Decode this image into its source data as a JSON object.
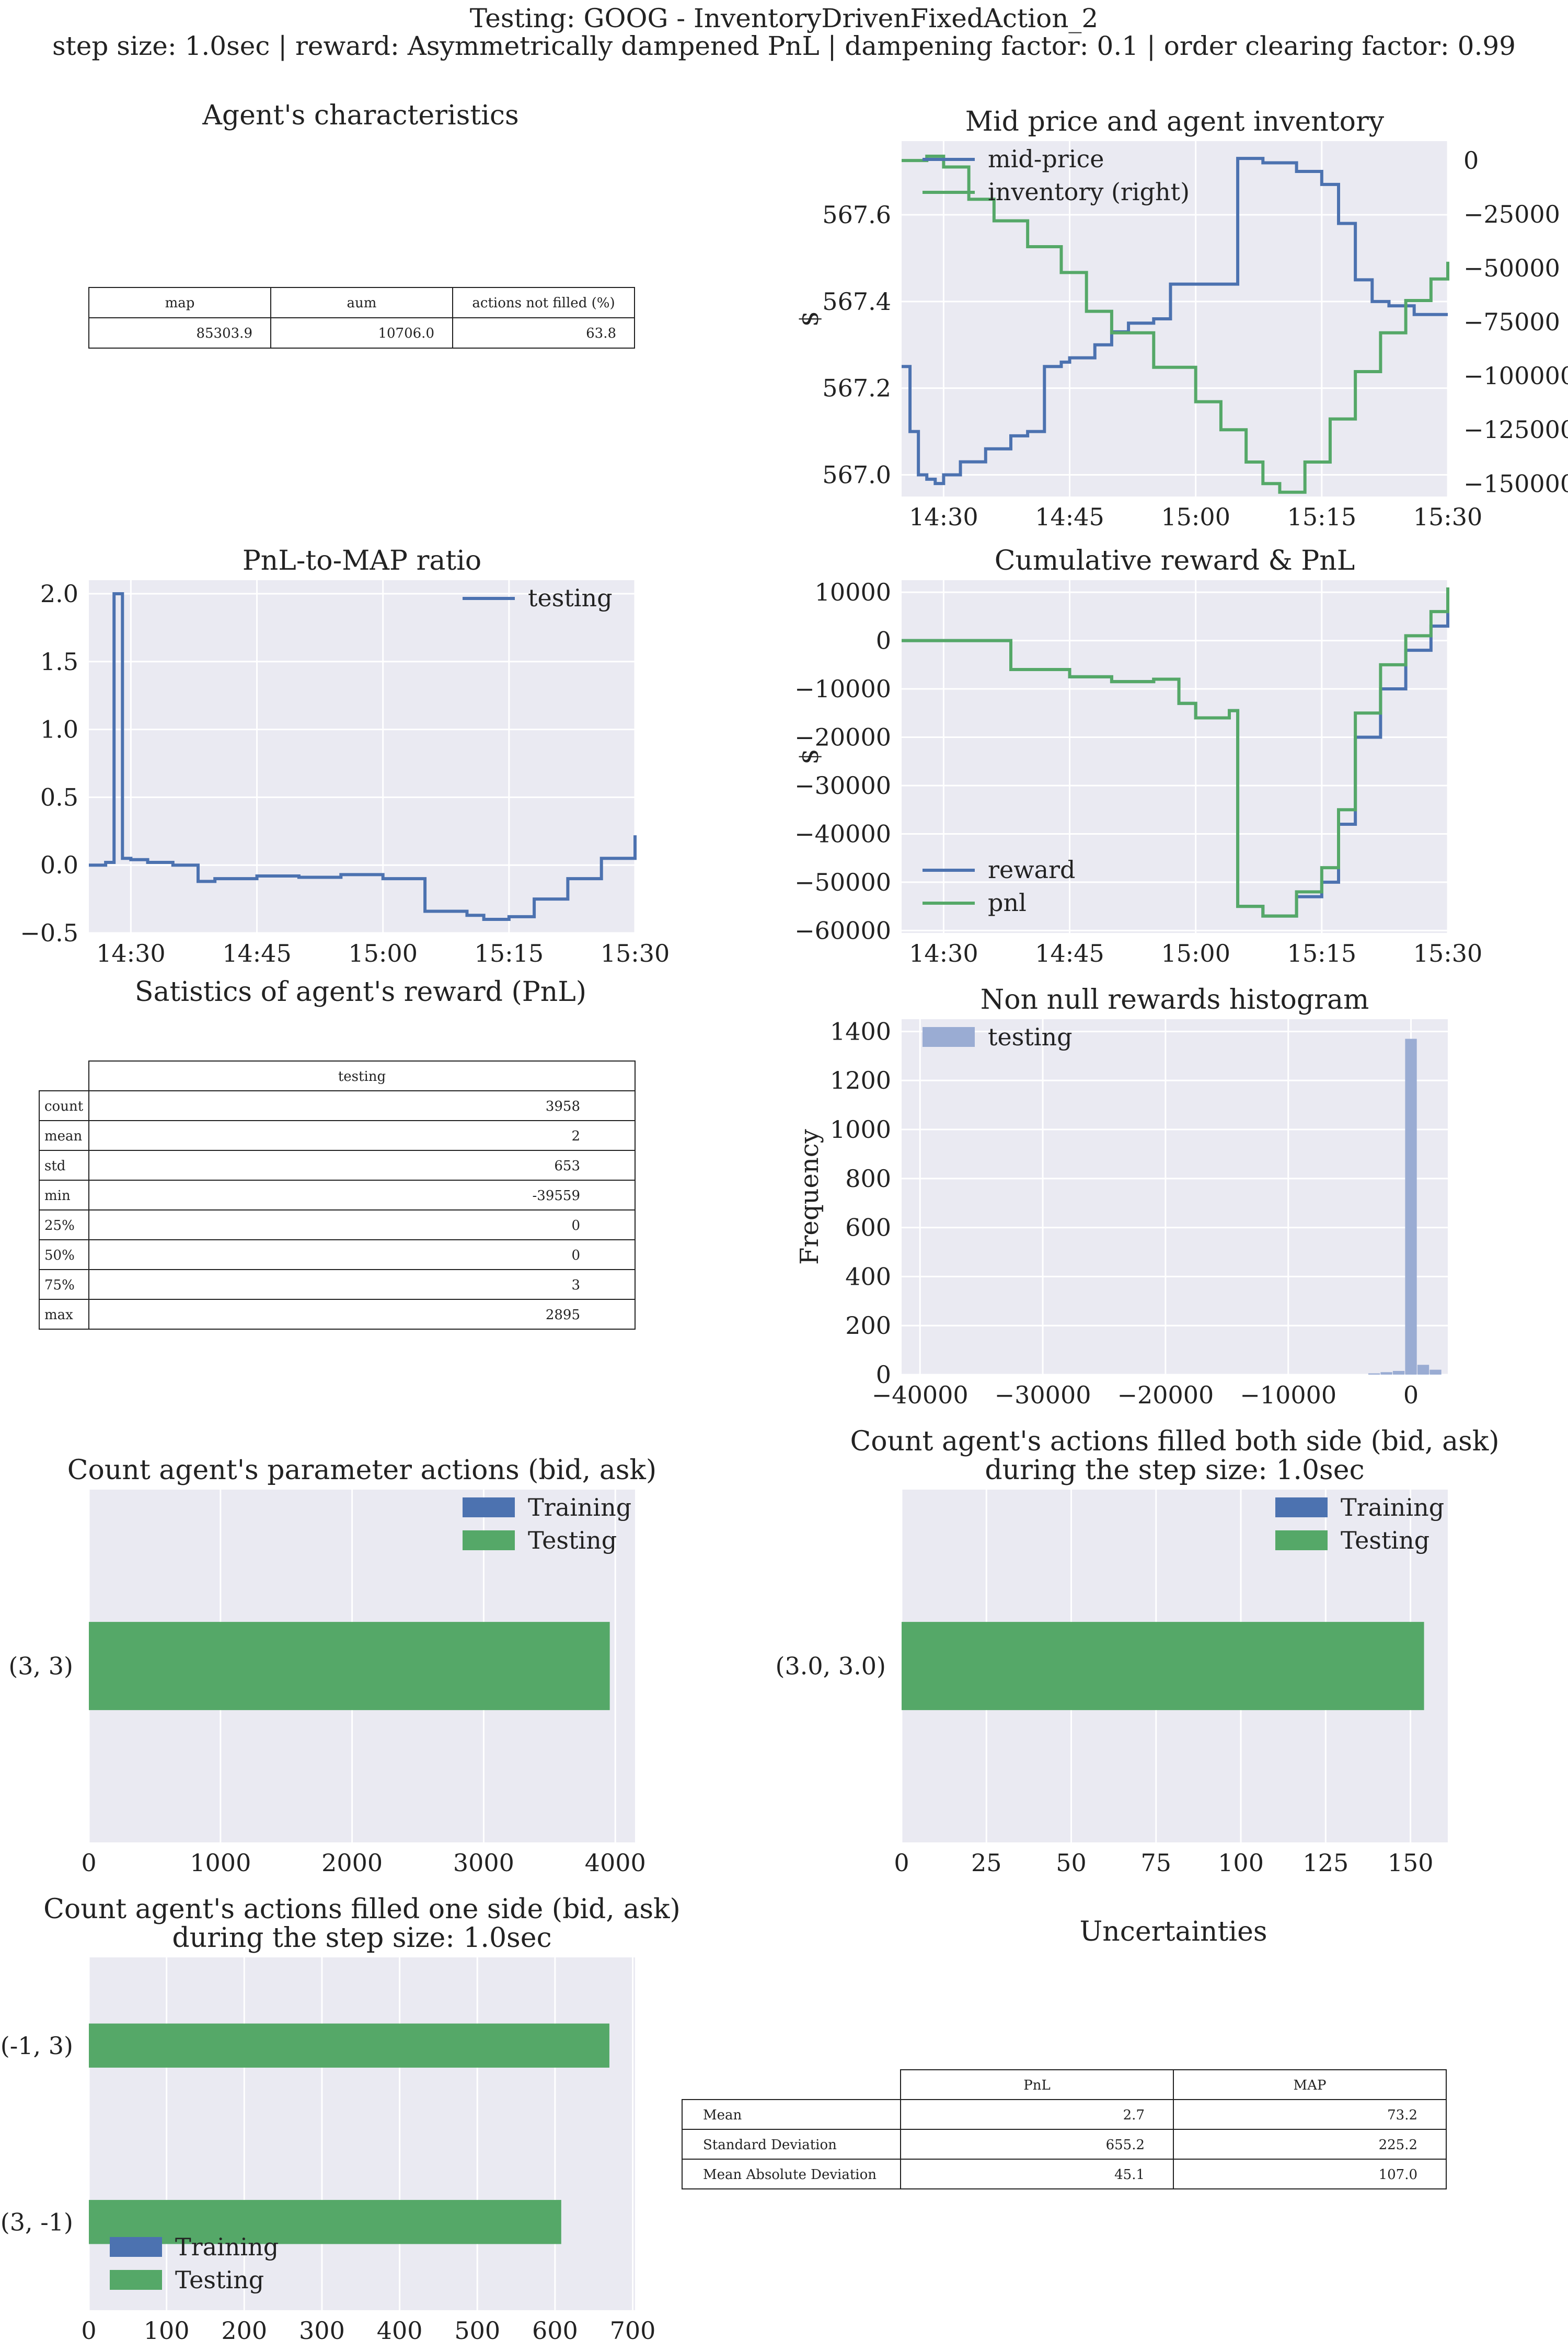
{
  "header": {
    "title": "Testing: GOOG - InventoryDrivenFixedAction_2",
    "subtitle": "step size: 1.0sec | reward: Asymmetrically dampened PnL | dampening factor: 0.1  | order clearing factor: 0.99"
  },
  "colors": {
    "blue": "#4c72b0",
    "green": "#55a868",
    "panel_bg": "#eaeaf2",
    "grid": "#ffffff",
    "hist": "#9aacd3"
  },
  "agent_table": {
    "title": "Agent's characteristics",
    "columns": [
      "map",
      "aum",
      "actions not filled (%)"
    ],
    "values": [
      "85303.9",
      "10706.0",
      "63.8"
    ]
  },
  "stats_table": {
    "title": "Satistics of agent's reward (PnL)",
    "column": "testing",
    "rows": [
      {
        "label": "count",
        "value": "3958"
      },
      {
        "label": "mean",
        "value": "2"
      },
      {
        "label": "std",
        "value": "653"
      },
      {
        "label": "min",
        "value": "-39559"
      },
      {
        "label": "25%",
        "value": "0"
      },
      {
        "label": "50%",
        "value": "0"
      },
      {
        "label": "75%",
        "value": "3"
      },
      {
        "label": "max",
        "value": "2895"
      }
    ]
  },
  "uncertainty_table": {
    "title": "Uncertainties",
    "columns": [
      "PnL",
      "MAP"
    ],
    "rows": [
      {
        "label": "Mean",
        "values": [
          "2.7",
          "73.2"
        ]
      },
      {
        "label": "Standard Deviation",
        "values": [
          "655.2",
          "225.2"
        ]
      },
      {
        "label": "Mean Absolute Deviation",
        "values": [
          "45.1",
          "107.0"
        ]
      }
    ]
  },
  "chart_data": [
    {
      "id": "mid_price",
      "type": "line",
      "title": "Mid price and agent inventory",
      "ylabel": "$",
      "xlim": [
        "14:25",
        "15:30"
      ],
      "x_ticks": [
        "14:30",
        "14:45",
        "15:00",
        "15:15",
        "15:30"
      ],
      "ylim": [
        566.95,
        567.77
      ],
      "y_ticks": [
        "567.0",
        "567.2",
        "567.4",
        "567.6"
      ],
      "y2lim": [
        -156000,
        9000
      ],
      "y2_ticks": [
        "0",
        "−25000",
        "−50000",
        "−75000",
        "−100000",
        "−125000",
        "−150000"
      ],
      "legend": "top-left",
      "series": [
        {
          "name": "mid-price",
          "axis": "left",
          "x": [
            "14:25",
            "14:26",
            "14:27",
            "14:28",
            "14:29",
            "14:30",
            "14:32",
            "14:35",
            "14:38",
            "14:40",
            "14:42",
            "14:43",
            "14:44",
            "14:45",
            "14:48",
            "14:50",
            "14:52",
            "14:55",
            "14:57",
            "15:00",
            "15:01",
            "15:05",
            "15:05",
            "15:06",
            "15:08",
            "15:10",
            "15:12",
            "15:15",
            "15:17",
            "15:19",
            "15:21",
            "15:23",
            "15:26",
            "15:30"
          ],
          "values": [
            567.25,
            567.1,
            567.0,
            566.99,
            566.98,
            567.0,
            567.03,
            567.06,
            567.09,
            567.1,
            567.25,
            567.25,
            567.26,
            567.27,
            567.3,
            567.33,
            567.35,
            567.36,
            567.44,
            567.44,
            567.44,
            567.45,
            567.73,
            567.73,
            567.72,
            567.72,
            567.7,
            567.67,
            567.58,
            567.45,
            567.4,
            567.39,
            567.37,
            567.37
          ]
        },
        {
          "name": "inventory (right)",
          "axis": "right",
          "x": [
            "14:25",
            "14:28",
            "14:30",
            "14:33",
            "14:36",
            "14:40",
            "14:44",
            "14:47",
            "14:50",
            "14:55",
            "15:00",
            "15:03",
            "15:06",
            "15:08",
            "15:10",
            "15:13",
            "15:16",
            "15:19",
            "15:22",
            "15:25",
            "15:28",
            "15:30"
          ],
          "values": [
            0,
            2000,
            -3000,
            -18000,
            -28000,
            -40000,
            -52000,
            -70000,
            -80000,
            -96000,
            -112000,
            -125000,
            -140000,
            -150000,
            -154000,
            -140000,
            -120000,
            -98000,
            -80000,
            -65000,
            -55000,
            -47000
          ]
        }
      ]
    },
    {
      "id": "pnl_map",
      "type": "line",
      "title": "PnL-to-MAP ratio",
      "xlim": [
        "14:25",
        "15:30"
      ],
      "x_ticks": [
        "14:30",
        "14:45",
        "15:00",
        "15:15",
        "15:30"
      ],
      "ylim": [
        -0.5,
        2.1
      ],
      "y_ticks": [
        "−0.5",
        "0.0",
        "0.5",
        "1.0",
        "1.5",
        "2.0"
      ],
      "legend": "top-right",
      "series": [
        {
          "name": "testing",
          "x": [
            "14:25",
            "14:27",
            "14:28",
            "14:28",
            "14:29",
            "14:29",
            "14:30",
            "14:32",
            "14:35",
            "14:38",
            "14:38",
            "14:40",
            "14:45",
            "14:50",
            "14:55",
            "15:00",
            "15:05",
            "15:05",
            "15:10",
            "15:12",
            "15:15",
            "15:18",
            "15:22",
            "15:26",
            "15:30"
          ],
          "values": [
            0.0,
            0.02,
            0.1,
            2.0,
            0.2,
            0.05,
            0.04,
            0.02,
            0.0,
            0.0,
            -0.12,
            -0.1,
            -0.08,
            -0.09,
            -0.07,
            -0.1,
            -0.1,
            -0.34,
            -0.37,
            -0.4,
            -0.38,
            -0.25,
            -0.1,
            0.05,
            0.22
          ]
        }
      ]
    },
    {
      "id": "cum_reward",
      "type": "line",
      "title": "Cumulative reward & PnL",
      "ylabel": "$",
      "xlim": [
        "14:25",
        "15:30"
      ],
      "x_ticks": [
        "14:30",
        "14:45",
        "15:00",
        "15:15",
        "15:30"
      ],
      "ylim": [
        -60500,
        12500
      ],
      "y_ticks": [
        "−60000",
        "−50000",
        "−40000",
        "−30000",
        "−20000",
        "−10000",
        "0",
        "10000"
      ],
      "legend": "bottom-left",
      "series": [
        {
          "name": "reward",
          "x": [
            "14:25",
            "14:35",
            "14:38",
            "14:38",
            "14:45",
            "14:50",
            "14:55",
            "14:58",
            "15:00",
            "15:04",
            "15:05",
            "15:05",
            "15:08",
            "15:12",
            "15:15",
            "15:17",
            "15:19",
            "15:22",
            "15:25",
            "15:28",
            "15:30"
          ],
          "values": [
            0,
            0,
            -1000,
            -6000,
            -7500,
            -8500,
            -8000,
            -13000,
            -16000,
            -14500,
            -15000,
            -55000,
            -57000,
            -53000,
            -50000,
            -38000,
            -20000,
            -10000,
            -2000,
            3000,
            6000
          ]
        },
        {
          "name": "pnl",
          "x": [
            "14:25",
            "14:35",
            "14:38",
            "14:38",
            "14:45",
            "14:50",
            "14:55",
            "14:58",
            "15:00",
            "15:04",
            "15:05",
            "15:05",
            "15:08",
            "15:12",
            "15:15",
            "15:17",
            "15:19",
            "15:22",
            "15:25",
            "15:28",
            "15:30"
          ],
          "values": [
            0,
            0,
            -1000,
            -6000,
            -7500,
            -8500,
            -8000,
            -13000,
            -16000,
            -14500,
            -15000,
            -55000,
            -57000,
            -52000,
            -47000,
            -35000,
            -15000,
            -5000,
            1000,
            6000,
            11000
          ]
        }
      ]
    },
    {
      "id": "hist",
      "type": "bar",
      "title": "Non null rewards histogram",
      "ylabel": "Frequency",
      "xlim": [
        -41500,
        3000
      ],
      "x_ticks": [
        "−40000",
        "−30000",
        "−20000",
        "−10000",
        "0"
      ],
      "ylim": [
        0,
        1450
      ],
      "y_ticks": [
        "0",
        "200",
        "400",
        "600",
        "800",
        "1000",
        "1200",
        "1400"
      ],
      "legend": "top-left",
      "series": [
        {
          "name": "testing",
          "x": [
            -3000,
            -2000,
            -1000,
            0,
            1000,
            2000
          ],
          "values": [
            5,
            10,
            15,
            1370,
            40,
            20
          ]
        }
      ]
    },
    {
      "id": "param_actions",
      "type": "bar",
      "orientation": "horizontal",
      "title": "Count agent's parameter actions (bid, ask)",
      "categories": [
        "(3, 3)"
      ],
      "xlim": [
        0,
        4150
      ],
      "x_ticks": [
        "0",
        "1000",
        "2000",
        "3000",
        "4000"
      ],
      "legend": "top-right",
      "series": [
        {
          "name": "Training",
          "values": [
            0
          ]
        },
        {
          "name": "Testing",
          "values": [
            3958
          ]
        }
      ]
    },
    {
      "id": "both_side",
      "type": "bar",
      "orientation": "horizontal",
      "title": "Count agent's actions filled both side (bid, ask)\nduring the step size: 1.0sec",
      "categories": [
        "(3.0, 3.0)"
      ],
      "xlim": [
        0,
        161
      ],
      "x_ticks": [
        "0",
        "25",
        "50",
        "75",
        "100",
        "125",
        "150"
      ],
      "legend": "top-right",
      "series": [
        {
          "name": "Training",
          "values": [
            0
          ]
        },
        {
          "name": "Testing",
          "values": [
            154
          ]
        }
      ]
    },
    {
      "id": "one_side",
      "type": "bar",
      "orientation": "horizontal",
      "title": "Count agent's actions filled one side (bid, ask)\nduring the step size: 1.0sec",
      "categories": [
        "(-1, 3)",
        "(3, -1)"
      ],
      "xlim": [
        0,
        703
      ],
      "x_ticks": [
        "0",
        "100",
        "200",
        "300",
        "400",
        "500",
        "600",
        "700"
      ],
      "legend": "bottom-left",
      "series": [
        {
          "name": "Training",
          "values": [
            0,
            0
          ]
        },
        {
          "name": "Testing",
          "values": [
            670,
            608
          ]
        }
      ]
    }
  ]
}
